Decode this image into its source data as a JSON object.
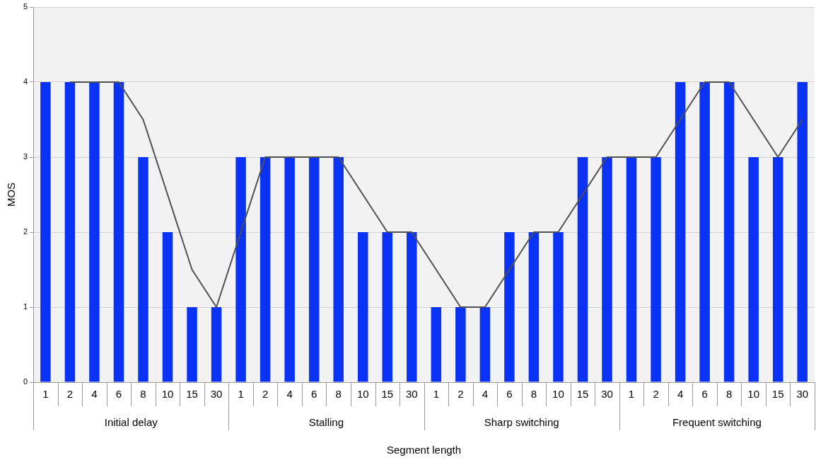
{
  "chart_data": {
    "type": "bar",
    "xlabel": "Segment length",
    "ylabel": "MOS",
    "categories": [
      "1",
      "2",
      "4",
      "6",
      "8",
      "10",
      "15",
      "30",
      "1",
      "2",
      "4",
      "6",
      "8",
      "10",
      "15",
      "30",
      "1",
      "2",
      "4",
      "6",
      "8",
      "10",
      "15",
      "30",
      "1",
      "2",
      "4",
      "6",
      "8",
      "10",
      "15",
      "30"
    ],
    "series": [
      {
        "color": "#0a32f5",
        "values": [
          4,
          4,
          4,
          4,
          3,
          2,
          1,
          1,
          3,
          3,
          3,
          3,
          3,
          2,
          2,
          2,
          1,
          1,
          1,
          2,
          2,
          2,
          3,
          3,
          3,
          3,
          4,
          4,
          4,
          3,
          3,
          4
        ]
      },
      {
        "type": "line",
        "color": "#505050",
        "values": [
          null,
          4,
          4,
          4,
          3.5,
          2.5,
          1.5,
          1,
          2,
          3,
          3,
          3,
          3,
          2.5,
          2,
          2,
          1.5,
          1,
          1,
          1.5,
          2,
          2,
          2.5,
          3,
          3,
          3,
          3.5,
          4,
          4,
          3.5,
          3,
          3.5
        ]
      }
    ],
    "annotations": [
      "Initial delay",
      "Stalling",
      "Sharp switching",
      "Frequent switching"
    ],
    "ylim": [
      0,
      5
    ],
    "yticks": [
      0,
      1,
      2,
      3,
      4,
      5
    ],
    "grid": "y",
    "legend": false,
    "marker": "none"
  }
}
